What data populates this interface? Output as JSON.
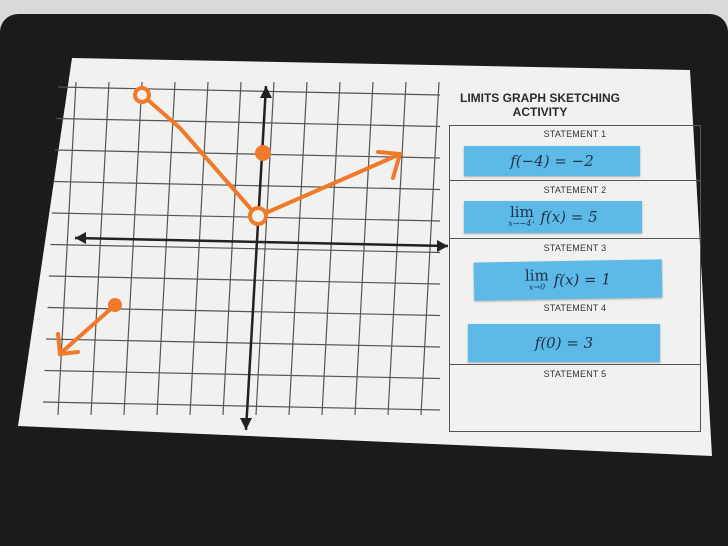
{
  "worksheet": {
    "title": "LIMITS GRAPH SKETCHING ACTIVITY",
    "statements": [
      {
        "label": "STATEMENT 1",
        "expr": "f(−4) = −2"
      },
      {
        "label": "STATEMENT 2",
        "lim_word": "lim",
        "lim_sub": "x→−4⁺",
        "expr": "f(x) = 5"
      },
      {
        "label": "STATEMENT 3",
        "lim_word": "lim",
        "lim_sub": "x→0",
        "expr": "f(x) = 1"
      },
      {
        "label": "STATEMENT 4",
        "expr": "f(0) = 3"
      },
      {
        "label": "STATEMENT 5"
      }
    ]
  },
  "colors": {
    "strip": "#5db9e6",
    "sketch": "#f07a2a",
    "board": "#1b1b1d"
  }
}
